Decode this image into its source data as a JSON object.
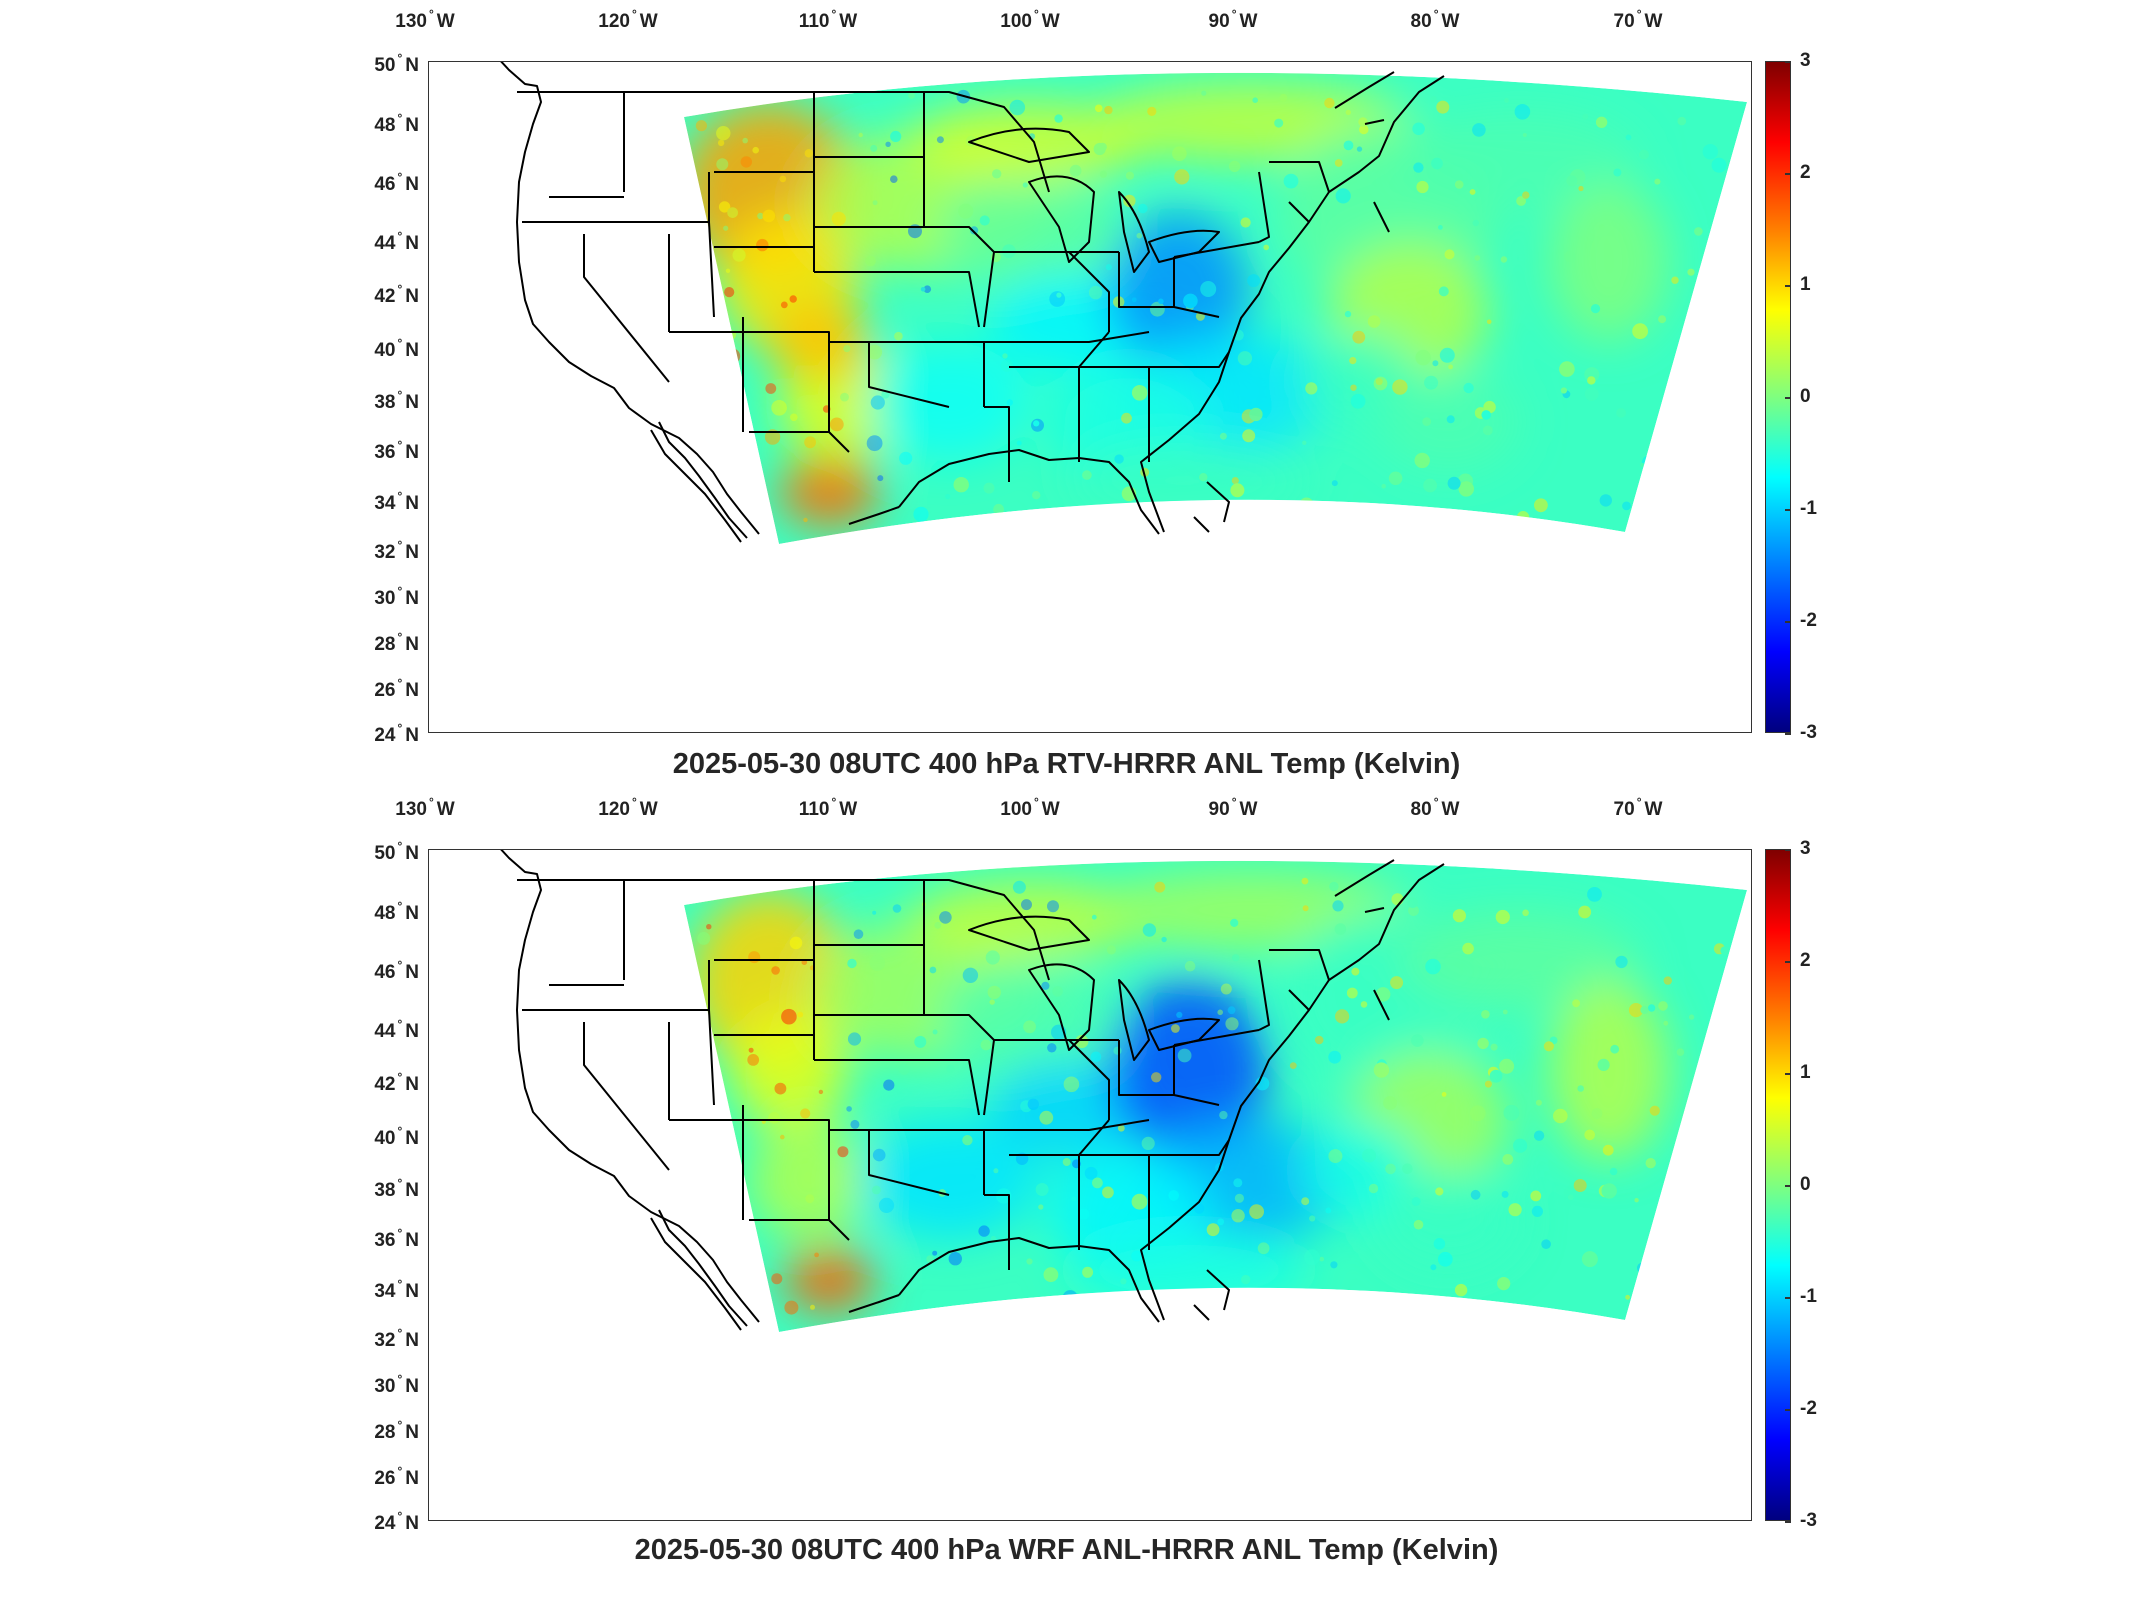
{
  "lon_labels": [
    {
      "deg": "130",
      "hem": "W"
    },
    {
      "deg": "120",
      "hem": "W"
    },
    {
      "deg": "110",
      "hem": "W"
    },
    {
      "deg": "100",
      "hem": "W"
    },
    {
      "deg": "90",
      "hem": "W"
    },
    {
      "deg": "80",
      "hem": "W"
    },
    {
      "deg": "70",
      "hem": "W"
    }
  ],
  "lat_labels": [
    {
      "deg": "50",
      "hem": "N"
    },
    {
      "deg": "48",
      "hem": "N"
    },
    {
      "deg": "46",
      "hem": "N"
    },
    {
      "deg": "44",
      "hem": "N"
    },
    {
      "deg": "42",
      "hem": "N"
    },
    {
      "deg": "40",
      "hem": "N"
    },
    {
      "deg": "38",
      "hem": "N"
    },
    {
      "deg": "36",
      "hem": "N"
    },
    {
      "deg": "34",
      "hem": "N"
    },
    {
      "deg": "32",
      "hem": "N"
    },
    {
      "deg": "30",
      "hem": "N"
    },
    {
      "deg": "28",
      "hem": "N"
    },
    {
      "deg": "26",
      "hem": "N"
    },
    {
      "deg": "24",
      "hem": "N"
    }
  ],
  "colorbar": {
    "ticks": [
      "3",
      "2",
      "1",
      "0",
      "-1",
      "-2",
      "-3"
    ],
    "range": [
      -3,
      3
    ],
    "colormap": "jet",
    "colors": [
      "#7f0000",
      "#ff0000",
      "#ff7f00",
      "#ffff00",
      "#7fff7f",
      "#00ffff",
      "#007fff",
      "#0000ff",
      "#00007f"
    ]
  },
  "panels": [
    {
      "title": "2025-05-30 08UTC 400 hPa RTV-HRRR ANL Temp (Kelvin)"
    },
    {
      "title": "2025-05-30 08UTC 400 hPa WRF ANL-HRRR ANL Temp (Kelvin)"
    }
  ]
}
